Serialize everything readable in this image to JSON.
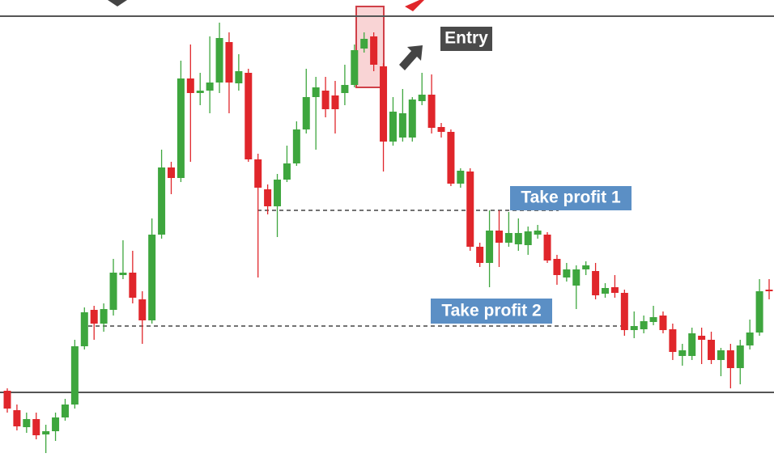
{
  "chart_data": {
    "type": "candlestick",
    "up_color": "#3ea63e",
    "down_color": "#e0262b",
    "ylim": [
      0,
      576
    ],
    "open": [
      93,
      69,
      48,
      58,
      39,
      43,
      60,
      76,
      148,
      193,
      176,
      193,
      236,
      239,
      206,
      180,
      286,
      369,
      356,
      479,
      461,
      464,
      474,
      524,
      473,
      486,
      379,
      342,
      321,
      354,
      374,
      416,
      456,
      464,
      458,
      461,
      471,
      516,
      531,
      494,
      401,
      406,
      406,
      451,
      459,
      419,
      413,
      349,
      364,
      271,
      251,
      291,
      276,
      274,
      273,
      286,
      286,
      256,
      233,
      223,
      243,
      241,
      213,
      221,
      214,
      168,
      169,
      178,
      186,
      169,
      136,
      136,
      161,
      156,
      131,
      143,
      121,
      149,
      165,
      218
    ],
    "high": [
      96,
      76,
      66,
      66,
      51,
      66,
      83,
      156,
      196,
      198,
      201,
      256,
      279,
      266,
      216,
      306,
      391,
      376,
      501,
      521,
      486,
      531,
      548,
      536,
      509,
      491,
      386,
      348,
      361,
      396,
      426,
      491,
      481,
      481,
      476,
      496,
      521,
      536,
      536,
      498,
      456,
      466,
      456,
      486,
      484,
      424,
      416,
      368,
      368,
      276,
      316,
      316,
      314,
      306,
      296,
      298,
      289,
      261,
      251,
      248,
      253,
      251,
      226,
      236,
      218,
      191,
      186,
      198,
      191,
      176,
      151,
      171,
      171,
      166,
      146,
      151,
      156,
      181,
      231,
      231
    ],
    "low": [
      66,
      44,
      41,
      33,
      16,
      31,
      56,
      71,
      144,
      156,
      166,
      186,
      231,
      201,
      151,
      176,
      281,
      336,
      351,
      376,
      446,
      436,
      461,
      436,
      464,
      376,
      233,
      311,
      283,
      351,
      371,
      411,
      391,
      431,
      411,
      446,
      468,
      511,
      488,
      364,
      396,
      401,
      401,
      446,
      411,
      406,
      346,
      344,
      266,
      246,
      221,
      246,
      271,
      266,
      261,
      281,
      251,
      224,
      228,
      194,
      236,
      206,
      208,
      208,
      161,
      158,
      164,
      174,
      164,
      131,
      124,
      131,
      126,
      126,
      111,
      96,
      101,
      144,
      161,
      206
    ],
    "close": [
      71,
      49,
      58,
      38,
      43,
      60,
      76,
      148,
      190,
      176,
      194,
      239,
      239,
      208,
      180,
      286,
      369,
      356,
      479,
      461,
      464,
      474,
      529,
      474,
      488,
      379,
      344,
      321,
      354,
      374,
      416,
      456,
      468,
      441,
      441,
      471,
      514,
      528,
      496,
      401,
      438,
      436,
      453,
      459,
      418,
      413,
      349,
      365,
      271,
      251,
      291,
      276,
      288,
      288,
      290,
      291,
      254,
      236,
      243,
      243,
      248,
      211,
      220,
      214,
      168,
      173,
      179,
      184,
      168,
      141,
      143,
      164,
      156,
      131,
      143,
      121,
      149,
      165,
      216,
      216
    ],
    "levels": {
      "resistance": 556,
      "support": 91
    },
    "annotations": [
      {
        "text": "Entry"
      },
      {
        "text": "Take profit 1",
        "value": 316
      },
      {
        "text": "Take profit 2",
        "value": 173
      }
    ]
  }
}
